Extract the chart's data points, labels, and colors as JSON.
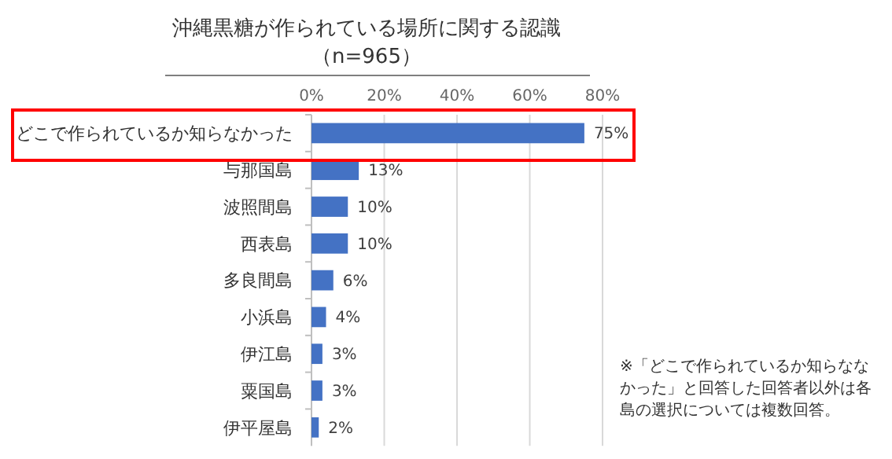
{
  "chart_data": {
    "type": "bar",
    "orientation": "horizontal",
    "title": "沖縄黒糖が作られている場所に関する認識",
    "subtitle": "（n=965）",
    "categories": [
      "どこで作られているか知らなかった",
      "与那国島",
      "波照間島",
      "西表島",
      "多良間島",
      "小浜島",
      "伊江島",
      "粟国島",
      "伊平屋島"
    ],
    "values": [
      75,
      13,
      10,
      10,
      6,
      4,
      3,
      3,
      2
    ],
    "value_labels": [
      "75%",
      "13%",
      "10%",
      "10%",
      "6%",
      "4%",
      "3%",
      "3%",
      "2%"
    ],
    "color": "#4472c4",
    "xlim": [
      0,
      80
    ],
    "xticks": [
      {
        "value": 0,
        "label": "0%"
      },
      {
        "value": 20,
        "label": "20%"
      },
      {
        "value": 40,
        "label": "40%"
      },
      {
        "value": 60,
        "label": "60%"
      },
      {
        "value": 80,
        "label": "80%"
      }
    ],
    "grid": "x",
    "annotations": [
      "※「どこで作られているか知らなな",
      "かった」と回答した回答者以外は各",
      "島の選択については複数回答。"
    ]
  }
}
